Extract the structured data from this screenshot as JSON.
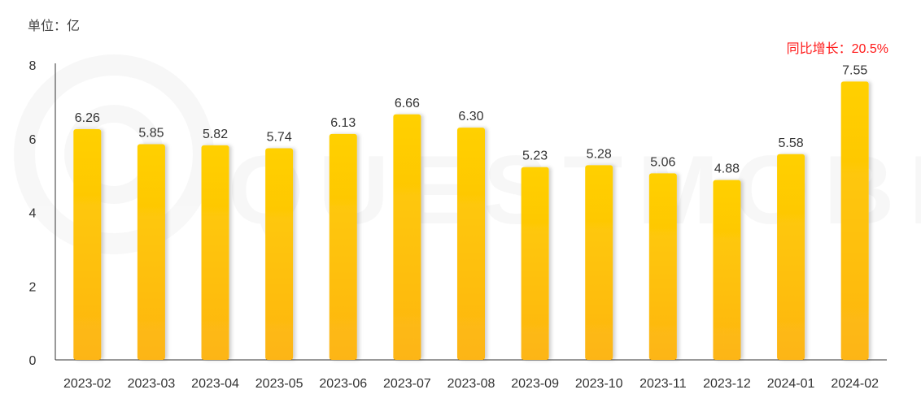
{
  "unit_label": "单位：亿",
  "growth_label": "同比增长：20.5%",
  "watermark": "QUESTMOBILE",
  "chart_data": {
    "type": "bar",
    "categories": [
      "2023-02",
      "2023-03",
      "2023-04",
      "2023-05",
      "2023-06",
      "2023-07",
      "2023-08",
      "2023-09",
      "2023-10",
      "2023-11",
      "2023-12",
      "2024-01",
      "2024-02"
    ],
    "values": [
      6.26,
      5.85,
      5.82,
      5.74,
      6.13,
      6.66,
      6.3,
      5.23,
      5.28,
      5.06,
      4.88,
      5.58,
      7.55
    ],
    "value_labels": [
      "6.26",
      "5.85",
      "5.82",
      "5.74",
      "6.13",
      "6.66",
      "6.30",
      "5.23",
      "5.28",
      "5.06",
      "4.88",
      "5.58",
      "7.55"
    ],
    "y_ticks": [
      "0",
      "2",
      "4",
      "6",
      "8"
    ],
    "ylim": [
      0,
      8
    ],
    "title": "",
    "xlabel": "",
    "ylabel": "",
    "grid": false,
    "bar_color_top": "#ffd000",
    "bar_color_bottom": "#fdb515"
  }
}
